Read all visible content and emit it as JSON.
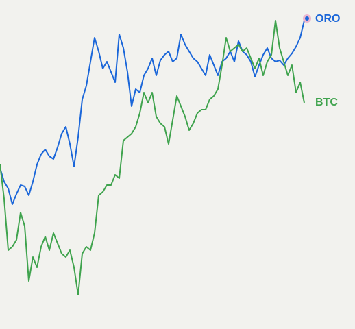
{
  "chart_data": {
    "type": "line",
    "categories": [
      null,
      null,
      null,
      null,
      null,
      null,
      null,
      null,
      null,
      null,
      null,
      null,
      null,
      null,
      null,
      null,
      null,
      null,
      null,
      null,
      null,
      null,
      null,
      null,
      null,
      null,
      null,
      null,
      null,
      null,
      null,
      null,
      null,
      null,
      null,
      null,
      null,
      null,
      null,
      null,
      null,
      null,
      null,
      null,
      null,
      null,
      null,
      null,
      null,
      null,
      null,
      null,
      null,
      null,
      null,
      null,
      null,
      null,
      null,
      null,
      null,
      null,
      null,
      null,
      null,
      null,
      null,
      null,
      null,
      null,
      null,
      null,
      null,
      null,
      null
    ],
    "ylim": [
      0,
      480
    ],
    "series": [
      {
        "name": "ORO",
        "color": "#1a66d9",
        "values": [
          235,
          215,
          205,
          182,
          197,
          210,
          208,
          195,
          215,
          240,
          255,
          262,
          252,
          248,
          265,
          285,
          295,
          270,
          237,
          280,
          335,
          355,
          390,
          425,
          405,
          380,
          390,
          375,
          360,
          430,
          410,
          375,
          325,
          350,
          345,
          370,
          380,
          395,
          370,
          392,
          400,
          405,
          390,
          395,
          430,
          415,
          405,
          395,
          390,
          380,
          370,
          400,
          385,
          370,
          390,
          395,
          405,
          390,
          420,
          405,
          400,
          390,
          368,
          385,
          400,
          410,
          395,
          390,
          392,
          385,
          395,
          402,
          412,
          425,
          450
        ]
      },
      {
        "name": "BTC",
        "color": "#3fa34d",
        "values": [
          240,
          190,
          115,
          120,
          130,
          170,
          150,
          70,
          105,
          90,
          120,
          135,
          115,
          140,
          125,
          110,
          105,
          115,
          90,
          50,
          110,
          120,
          115,
          140,
          195,
          200,
          210,
          210,
          225,
          220,
          275,
          280,
          285,
          295,
          315,
          345,
          330,
          345,
          310,
          300,
          295,
          270,
          305,
          340,
          325,
          310,
          290,
          300,
          315,
          320,
          320,
          335,
          340,
          350,
          385,
          425,
          405,
          410,
          415,
          405,
          410,
          395,
          380,
          395,
          370,
          390,
          400,
          450,
          410,
          390,
          370,
          385,
          345,
          360,
          330
        ]
      }
    ]
  }
}
